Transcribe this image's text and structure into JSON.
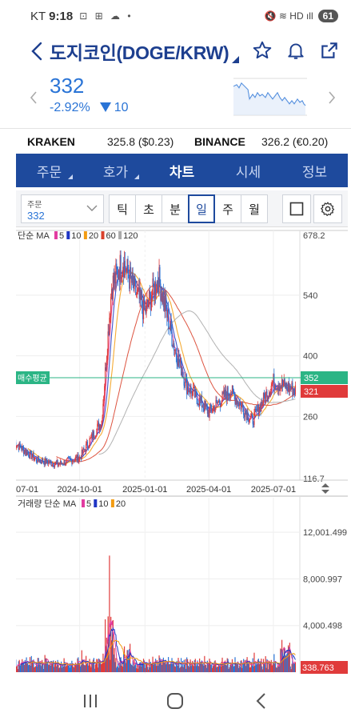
{
  "status_bar": {
    "carrier": "KT",
    "time": "9:18",
    "glyphs": "⊡ ⊞ ☁ •",
    "right_glyphs": "🔇 ≋ HD ıll",
    "battery": "61"
  },
  "header": {
    "title": "도지코인(DOGE/KRW)"
  },
  "quote": {
    "price": "332",
    "change_pct": "-2.92%",
    "change_abs": "10"
  },
  "exchanges": [
    {
      "name": "KRAKEN",
      "value": "325.8 ($0.23)"
    },
    {
      "name": "BINANCE",
      "value": "326.2 (€0.20)"
    }
  ],
  "tabs": [
    {
      "label": "주문",
      "dropdown": true
    },
    {
      "label": "호가",
      "dropdown": true
    },
    {
      "label": "차트",
      "dropdown": false,
      "active": true
    },
    {
      "label": "시세",
      "dropdown": false
    },
    {
      "label": "정보",
      "dropdown": false
    }
  ],
  "toolbar": {
    "order_label": "주문",
    "order_value": "332",
    "periods": [
      "틱",
      "초",
      "분",
      "일",
      "주",
      "월"
    ],
    "active_period": "일"
  },
  "price_panel": {
    "legend_prefix": "단순 MA",
    "ma_legend": [
      {
        "label": "5",
        "color": "#e23ca0"
      },
      {
        "label": "10",
        "color": "#1f35c4"
      },
      {
        "label": "20",
        "color": "#f39c12"
      },
      {
        "label": "60",
        "color": "#d9412b"
      },
      {
        "label": "120",
        "color": "#aaaaaa"
      }
    ],
    "y_ticks": [
      "678.2",
      "540",
      "400",
      "260",
      "116.7"
    ],
    "avg_buy_label": "매수평균",
    "avg_buy_value": "352",
    "current_value": "321",
    "x_ticks": [
      "07-01",
      "2024-10-01",
      "2025-01-01",
      "2025-04-01",
      "2025-07-01"
    ]
  },
  "volume_panel": {
    "legend_prefix": "거래량 단순 MA",
    "ma_legend": [
      {
        "label": "5",
        "color": "#e23ca0"
      },
      {
        "label": "10",
        "color": "#1f35c4"
      },
      {
        "label": "20",
        "color": "#f39c12"
      }
    ],
    "y_ticks": [
      "12,001.499",
      "8,000.997",
      "4,000.498"
    ],
    "current_value": "338.763"
  },
  "colors": {
    "brand": "#1e4a9d",
    "down": "#2a74d6",
    "up": "#e03b3b"
  },
  "chart_data": {
    "type": "line",
    "y_range": [
      116.7,
      678.2
    ],
    "x_labels": [
      "07-01",
      "2024-10-01",
      "2025-01-01",
      "2025-04-01",
      "2025-07-01"
    ],
    "close_price": [
      {
        "d": "2024-07-01",
        "v": 200
      },
      {
        "d": "2024-08-01",
        "v": 160
      },
      {
        "d": "2024-09-01",
        "v": 150
      },
      {
        "d": "2024-10-01",
        "v": 165
      },
      {
        "d": "2024-11-01",
        "v": 250
      },
      {
        "d": "2024-11-15",
        "v": 560
      },
      {
        "d": "2024-12-01",
        "v": 620
      },
      {
        "d": "2024-12-15",
        "v": 560
      },
      {
        "d": "2025-01-01",
        "v": 500
      },
      {
        "d": "2025-01-20",
        "v": 580
      },
      {
        "d": "2025-02-10",
        "v": 430
      },
      {
        "d": "2025-03-01",
        "v": 330
      },
      {
        "d": "2025-04-01",
        "v": 270
      },
      {
        "d": "2025-05-01",
        "v": 320
      },
      {
        "d": "2025-06-01",
        "v": 250
      },
      {
        "d": "2025-07-01",
        "v": 340
      },
      {
        "d": "2025-08-01",
        "v": 321
      }
    ],
    "avg_buy_price": 352,
    "volume_peak": 10000
  }
}
